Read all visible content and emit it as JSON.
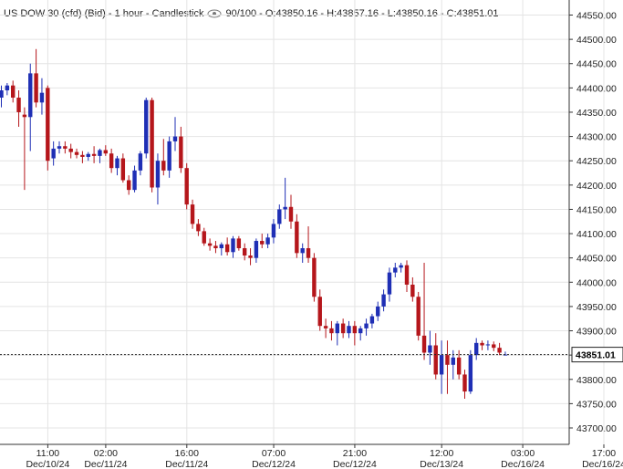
{
  "header": {
    "title": "US DOW 30 (cfd) (Bid) - 1 hour - Candlestick",
    "eye_icon": "eye-icon",
    "ohlc": "90/100 - O:43850.16 - H:43857.16 - L:43850.16 - C:43851.01"
  },
  "price_label": "43851.01",
  "colors": {
    "up": "#1f2fb5",
    "down": "#b5161b",
    "grid": "#e4e4e4",
    "axis": "#333333",
    "label_bg": "#ffffff"
  },
  "chart_data": {
    "type": "candlestick",
    "title": "US DOW 30 (cfd) (Bid) - 1 hour - Candlestick",
    "current_price": 43851.01,
    "ylim": [
      43650,
      44570
    ],
    "y_ticks": [
      43700,
      43750,
      43800,
      43850,
      43900,
      43950,
      44000,
      44050,
      44100,
      44150,
      44200,
      44250,
      44300,
      44350,
      44400,
      44450,
      44500,
      44550
    ],
    "y_tick_labels": [
      "43700.00",
      "43750.00",
      "43800.00",
      "43850.00",
      "43900.00",
      "43950.00",
      "44000.00",
      "44050.00",
      "44100.00",
      "44150.00",
      "44200.00",
      "44250.00",
      "44300.00",
      "44350.00",
      "44400.00",
      "44450.00",
      "44500.00",
      "44550.00"
    ],
    "x_tick_labels": [
      {
        "time": "11:00",
        "date": "Dec/10/24",
        "bar": 4
      },
      {
        "time": "02:00",
        "date": "Dec/11/24",
        "bar": 14
      },
      {
        "time": "16:00",
        "date": "Dec/11/24",
        "bar": 28
      },
      {
        "time": "07:00",
        "date": "Dec/12/24",
        "bar": 43
      },
      {
        "time": "21:00",
        "date": "Dec/12/24",
        "bar": 57
      },
      {
        "time": "12:00",
        "date": "Dec/13/24",
        "bar": 72
      },
      {
        "time": "03:00",
        "date": "Dec/16/24",
        "bar": 86
      },
      {
        "time": "17:00",
        "date": "Dec/16/24",
        "bar": 100
      }
    ],
    "grid": true,
    "candles": [
      {
        "o": 44380,
        "h": 44405,
        "l": 44360,
        "c": 44395
      },
      {
        "o": 44395,
        "h": 44410,
        "l": 44385,
        "c": 44405
      },
      {
        "o": 44405,
        "h": 44415,
        "l": 44370,
        "c": 44380
      },
      {
        "o": 44380,
        "h": 44395,
        "l": 44320,
        "c": 44350
      },
      {
        "o": 44345,
        "h": 44360,
        "l": 44190,
        "c": 44340
      },
      {
        "o": 44340,
        "h": 44450,
        "l": 44270,
        "c": 44430
      },
      {
        "o": 44430,
        "h": 44480,
        "l": 44360,
        "c": 44370
      },
      {
        "o": 44370,
        "h": 44420,
        "l": 44345,
        "c": 44390
      },
      {
        "o": 44400,
        "h": 44405,
        "l": 44230,
        "c": 44250
      },
      {
        "o": 44255,
        "h": 44290,
        "l": 44240,
        "c": 44275
      },
      {
        "o": 44275,
        "h": 44290,
        "l": 44265,
        "c": 44280
      },
      {
        "o": 44280,
        "h": 44290,
        "l": 44265,
        "c": 44275
      },
      {
        "o": 44275,
        "h": 44285,
        "l": 44255,
        "c": 44268
      },
      {
        "o": 44268,
        "h": 44275,
        "l": 44255,
        "c": 44262
      },
      {
        "o": 44262,
        "h": 44270,
        "l": 44245,
        "c": 44258
      },
      {
        "o": 44258,
        "h": 44268,
        "l": 44250,
        "c": 44264
      },
      {
        "o": 44264,
        "h": 44280,
        "l": 44245,
        "c": 44260
      },
      {
        "o": 44260,
        "h": 44275,
        "l": 44245,
        "c": 44272
      },
      {
        "o": 44272,
        "h": 44282,
        "l": 44260,
        "c": 44265
      },
      {
        "o": 44265,
        "h": 44275,
        "l": 44225,
        "c": 44235
      },
      {
        "o": 44235,
        "h": 44260,
        "l": 44220,
        "c": 44255
      },
      {
        "o": 44255,
        "h": 44265,
        "l": 44205,
        "c": 44210
      },
      {
        "o": 44210,
        "h": 44220,
        "l": 44180,
        "c": 44190
      },
      {
        "o": 44190,
        "h": 44240,
        "l": 44185,
        "c": 44230
      },
      {
        "o": 44230,
        "h": 44270,
        "l": 44220,
        "c": 44265
      },
      {
        "o": 44265,
        "h": 44380,
        "l": 44255,
        "c": 44375
      },
      {
        "o": 44375,
        "h": 44380,
        "l": 44185,
        "c": 44195
      },
      {
        "o": 44195,
        "h": 44265,
        "l": 44160,
        "c": 44250
      },
      {
        "o": 44250,
        "h": 44295,
        "l": 44220,
        "c": 44230
      },
      {
        "o": 44230,
        "h": 44300,
        "l": 44215,
        "c": 44290
      },
      {
        "o": 44290,
        "h": 44340,
        "l": 44270,
        "c": 44300
      },
      {
        "o": 44300,
        "h": 44320,
        "l": 44225,
        "c": 44235
      },
      {
        "o": 44235,
        "h": 44245,
        "l": 44150,
        "c": 44160
      },
      {
        "o": 44160,
        "h": 44170,
        "l": 44110,
        "c": 44120
      },
      {
        "o": 44120,
        "h": 44130,
        "l": 44095,
        "c": 44105
      },
      {
        "o": 44105,
        "h": 44112,
        "l": 44075,
        "c": 44080
      },
      {
        "o": 44080,
        "h": 44090,
        "l": 44065,
        "c": 44075
      },
      {
        "o": 44075,
        "h": 44085,
        "l": 44060,
        "c": 44070
      },
      {
        "o": 44070,
        "h": 44082,
        "l": 44055,
        "c": 44078
      },
      {
        "o": 44078,
        "h": 44092,
        "l": 44055,
        "c": 44062
      },
      {
        "o": 44062,
        "h": 44095,
        "l": 44050,
        "c": 44090
      },
      {
        "o": 44090,
        "h": 44095,
        "l": 44065,
        "c": 44070
      },
      {
        "o": 44070,
        "h": 44080,
        "l": 44045,
        "c": 44055
      },
      {
        "o": 44055,
        "h": 44070,
        "l": 44035,
        "c": 44050
      },
      {
        "o": 44050,
        "h": 44090,
        "l": 44040,
        "c": 44085
      },
      {
        "o": 44085,
        "h": 44100,
        "l": 44070,
        "c": 44078
      },
      {
        "o": 44078,
        "h": 44100,
        "l": 44070,
        "c": 44092
      },
      {
        "o": 44092,
        "h": 44130,
        "l": 44080,
        "c": 44120
      },
      {
        "o": 44120,
        "h": 44160,
        "l": 44110,
        "c": 44150
      },
      {
        "o": 44150,
        "h": 44215,
        "l": 44130,
        "c": 44155
      },
      {
        "o": 44155,
        "h": 44180,
        "l": 44110,
        "c": 44125
      },
      {
        "o": 44125,
        "h": 44140,
        "l": 44050,
        "c": 44060
      },
      {
        "o": 44060,
        "h": 44080,
        "l": 44040,
        "c": 44070
      },
      {
        "o": 44070,
        "h": 44115,
        "l": 44040,
        "c": 44050
      },
      {
        "o": 44050,
        "h": 44060,
        "l": 43960,
        "c": 43970
      },
      {
        "o": 43970,
        "h": 43985,
        "l": 43900,
        "c": 43910
      },
      {
        "o": 43910,
        "h": 43925,
        "l": 43885,
        "c": 43905
      },
      {
        "o": 43905,
        "h": 43920,
        "l": 43880,
        "c": 43895
      },
      {
        "o": 43895,
        "h": 43920,
        "l": 43870,
        "c": 43915
      },
      {
        "o": 43915,
        "h": 43925,
        "l": 43885,
        "c": 43895
      },
      {
        "o": 43895,
        "h": 43920,
        "l": 43885,
        "c": 43910
      },
      {
        "o": 43910,
        "h": 43920,
        "l": 43870,
        "c": 43895
      },
      {
        "o": 43895,
        "h": 43910,
        "l": 43880,
        "c": 43905
      },
      {
        "o": 43905,
        "h": 43925,
        "l": 43890,
        "c": 43915
      },
      {
        "o": 43915,
        "h": 43935,
        "l": 43905,
        "c": 43930
      },
      {
        "o": 43930,
        "h": 43960,
        "l": 43920,
        "c": 43950
      },
      {
        "o": 43950,
        "h": 43985,
        "l": 43940,
        "c": 43975
      },
      {
        "o": 43975,
        "h": 44030,
        "l": 43960,
        "c": 44020
      },
      {
        "o": 44020,
        "h": 44040,
        "l": 44010,
        "c": 44030
      },
      {
        "o": 44030,
        "h": 44040,
        "l": 44020,
        "c": 44035
      },
      {
        "o": 44035,
        "h": 44045,
        "l": 43980,
        "c": 43995
      },
      {
        "o": 43995,
        "h": 44010,
        "l": 43960,
        "c": 43970
      },
      {
        "o": 43970,
        "h": 43980,
        "l": 43880,
        "c": 43890
      },
      {
        "o": 43890,
        "h": 44040,
        "l": 43840,
        "c": 43855
      },
      {
        "o": 43855,
        "h": 43900,
        "l": 43830,
        "c": 43870
      },
      {
        "o": 43870,
        "h": 43895,
        "l": 43800,
        "c": 43810
      },
      {
        "o": 43810,
        "h": 43880,
        "l": 43770,
        "c": 43850
      },
      {
        "o": 43850,
        "h": 43880,
        "l": 43770,
        "c": 43830
      },
      {
        "o": 43830,
        "h": 43860,
        "l": 43800,
        "c": 43845
      },
      {
        "o": 43845,
        "h": 43860,
        "l": 43800,
        "c": 43810
      },
      {
        "o": 43810,
        "h": 43820,
        "l": 43760,
        "c": 43775
      },
      {
        "o": 43775,
        "h": 43860,
        "l": 43770,
        "c": 43850
      },
      {
        "o": 43850,
        "h": 43885,
        "l": 43840,
        "c": 43875
      },
      {
        "o": 43875,
        "h": 43880,
        "l": 43860,
        "c": 43870
      },
      {
        "o": 43870,
        "h": 43880,
        "l": 43860,
        "c": 43872
      },
      {
        "o": 43872,
        "h": 43878,
        "l": 43858,
        "c": 43865
      },
      {
        "o": 43865,
        "h": 43875,
        "l": 43850,
        "c": 43855
      },
      {
        "o": 43850.16,
        "h": 43857.16,
        "l": 43850.16,
        "c": 43851.01
      }
    ]
  }
}
